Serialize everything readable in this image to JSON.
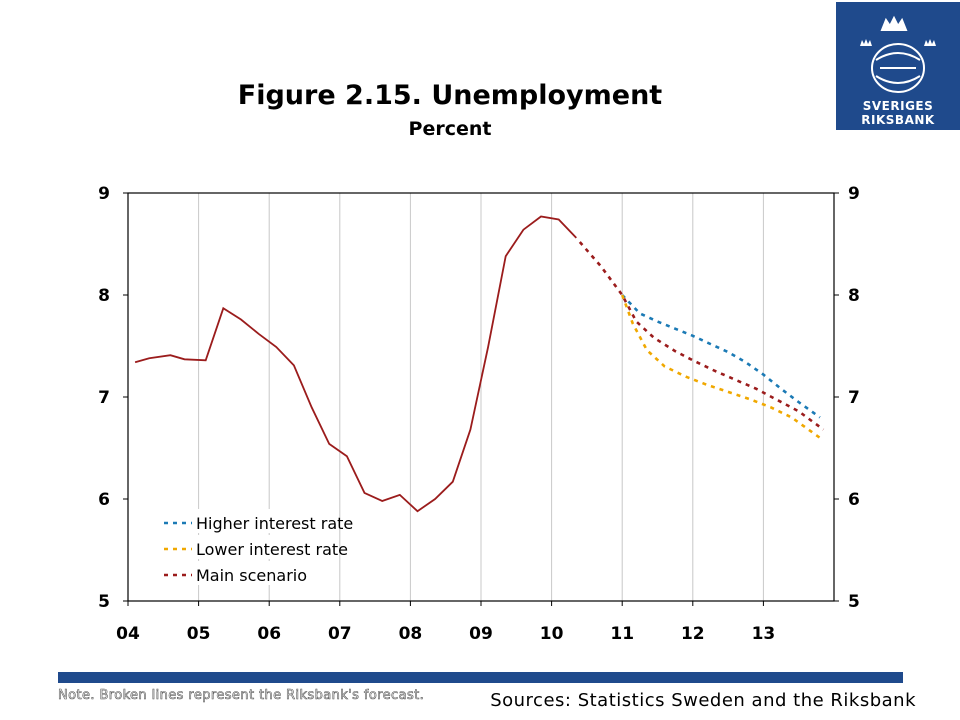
{
  "logo": {
    "line1": "SVERIGES",
    "line2": "RIKSBANK",
    "icon": "crown-emblem-icon",
    "color": "#1f4a8c"
  },
  "title": "Figure 2.15. Unemployment",
  "subtitle": "Percent",
  "note": "Note. Broken lines represent the Riksbank's forecast.",
  "sources": "Sources: Statistics Sweden and the Riksbank",
  "chart_data": {
    "type": "line",
    "xlabel": "",
    "ylabel": "",
    "ylim": [
      5,
      9
    ],
    "y_ticks": [
      5,
      6,
      7,
      8,
      9
    ],
    "xlim": [
      2004,
      2014
    ],
    "x_tick_labels": [
      "04",
      "05",
      "06",
      "07",
      "08",
      "09",
      "10",
      "11",
      "12",
      "13"
    ],
    "grid": "vertical",
    "legend_position": "bottom-left",
    "series": [
      {
        "color": "#9b1c1c",
        "style": "solid",
        "x": [
          2004.1,
          2004.3,
          2004.6,
          2004.8,
          2005.1,
          2005.35,
          2005.6,
          2005.85,
          2006.1,
          2006.35,
          2006.6,
          2006.85,
          2007.1,
          2007.35,
          2007.6,
          2007.85,
          2008.1,
          2008.35,
          2008.6,
          2008.85,
          2009.1,
          2009.35,
          2009.6,
          2009.85,
          2010.1,
          2010.35
        ],
        "values": [
          7.34,
          7.38,
          7.41,
          7.37,
          7.36,
          7.87,
          7.76,
          7.62,
          7.49,
          7.31,
          6.9,
          6.54,
          6.42,
          6.06,
          5.98,
          6.04,
          5.88,
          6.0,
          6.17,
          6.68,
          7.49,
          8.38,
          8.64,
          8.77,
          8.74,
          8.56
        ]
      },
      {
        "name": "Higher interest rate",
        "color": "#1b7ab5",
        "style": "dashed",
        "x": [
          2011.0,
          2011.25,
          2011.5,
          2011.75,
          2012.0,
          2012.25,
          2012.5,
          2012.75,
          2013.0,
          2013.25,
          2013.5,
          2013.8
        ],
        "values": [
          8.0,
          7.82,
          7.74,
          7.67,
          7.6,
          7.52,
          7.44,
          7.34,
          7.22,
          7.08,
          6.95,
          6.8
        ]
      },
      {
        "name": "Lower interest rate",
        "color": "#f0a800",
        "style": "dashed",
        "x": [
          2011.0,
          2011.15,
          2011.35,
          2011.6,
          2011.9,
          2012.2,
          2012.5,
          2012.8,
          2013.1,
          2013.4,
          2013.8
        ],
        "values": [
          8.0,
          7.72,
          7.46,
          7.3,
          7.2,
          7.12,
          7.05,
          6.98,
          6.9,
          6.8,
          6.6
        ]
      },
      {
        "name": "Main scenario",
        "color": "#9b1c1c",
        "style": "dashed",
        "x": [
          2010.4,
          2010.7,
          2011.0,
          2011.2,
          2011.45,
          2011.75,
          2012.0,
          2012.3,
          2012.6,
          2012.9,
          2013.2,
          2013.5,
          2013.85
        ],
        "values": [
          8.52,
          8.28,
          8.0,
          7.74,
          7.58,
          7.45,
          7.36,
          7.26,
          7.17,
          7.08,
          6.97,
          6.86,
          6.68
        ]
      }
    ]
  }
}
